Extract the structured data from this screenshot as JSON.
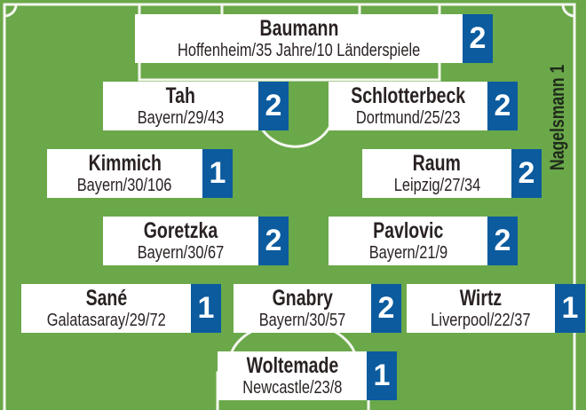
{
  "coach": "Nagelsmann 1",
  "colors": {
    "pitch": "#6aa84a",
    "badge": "#0b5b9e",
    "card": "#ffffff"
  },
  "players": [
    {
      "name": "Baumann",
      "info": "Hoffenheim/35 Jahre/10 Länderspiele",
      "grade": "2"
    },
    {
      "name": "Tah",
      "info": "Bayern/29/43",
      "grade": "2"
    },
    {
      "name": "Schlotterbeck",
      "info": "Dortmund/25/23",
      "grade": "2"
    },
    {
      "name": "Kimmich",
      "info": "Bayern/30/106",
      "grade": "1"
    },
    {
      "name": "Raum",
      "info": "Leipzig/27/34",
      "grade": "2"
    },
    {
      "name": "Goretzka",
      "info": "Bayern/30/67",
      "grade": "2"
    },
    {
      "name": "Pavlovic",
      "info": "Bayern/21/9",
      "grade": "2"
    },
    {
      "name": "Sané",
      "info": "Galatasaray/29/72",
      "grade": "1"
    },
    {
      "name": "Gnabry",
      "info": "Bayern/30/57",
      "grade": "2"
    },
    {
      "name": "Wirtz",
      "info": "Liverpool/22/37",
      "grade": "1"
    },
    {
      "name": "Woltemade",
      "info": "Newcastle/23/8",
      "grade": "1"
    }
  ]
}
